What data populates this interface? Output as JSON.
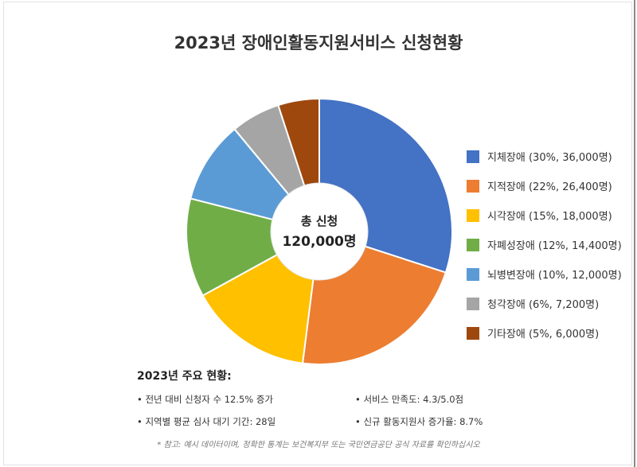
{
  "chart_data": {
    "type": "pie",
    "title": "2023년 장애인활동지원서비스 신청현황",
    "center_label": "총 신청",
    "center_value": "120,000명",
    "slices": [
      {
        "label": "지체장애 (30%, 36,000명)",
        "percent": 30,
        "value": 36000,
        "color": "#4472C4"
      },
      {
        "label": "지적장애 (22%, 26,400명)",
        "percent": 22,
        "value": 26400,
        "color": "#ED7D31"
      },
      {
        "label": "시각장애 (15%, 18,000명)",
        "percent": 15,
        "value": 18000,
        "color": "#FFC000"
      },
      {
        "label": "자폐성장애 (12%, 14,400명)",
        "percent": 12,
        "value": 14400,
        "color": "#70AD47"
      },
      {
        "label": "뇌병변장애 (10%, 12,000명)",
        "percent": 10,
        "value": 12000,
        "color": "#5B9BD5"
      },
      {
        "label": "청각장애 (6%, 7,200명)",
        "percent": 6,
        "value": 7200,
        "color": "#A5A5A5"
      },
      {
        "label": "기타장애 (5%, 6,000명)",
        "percent": 5,
        "value": 6000,
        "color": "#9E480E"
      }
    ],
    "legend_position": "right"
  },
  "summary": {
    "title": "2023년 주요 현황:",
    "items": [
      "• 전년 대비 신청자 수 12.5% 증가",
      "• 서비스 만족도: 4.3/5.0점",
      "• 지역별 평균 심사 대기 기간: 28일",
      "• 신규 활동지원사 증가율: 8.7%"
    ]
  },
  "footnote": "* 참고: 예시 데이터이며, 정확한 통계는 보건복지부 또는 국민연금공단 공식 자료를 확인하십시오"
}
